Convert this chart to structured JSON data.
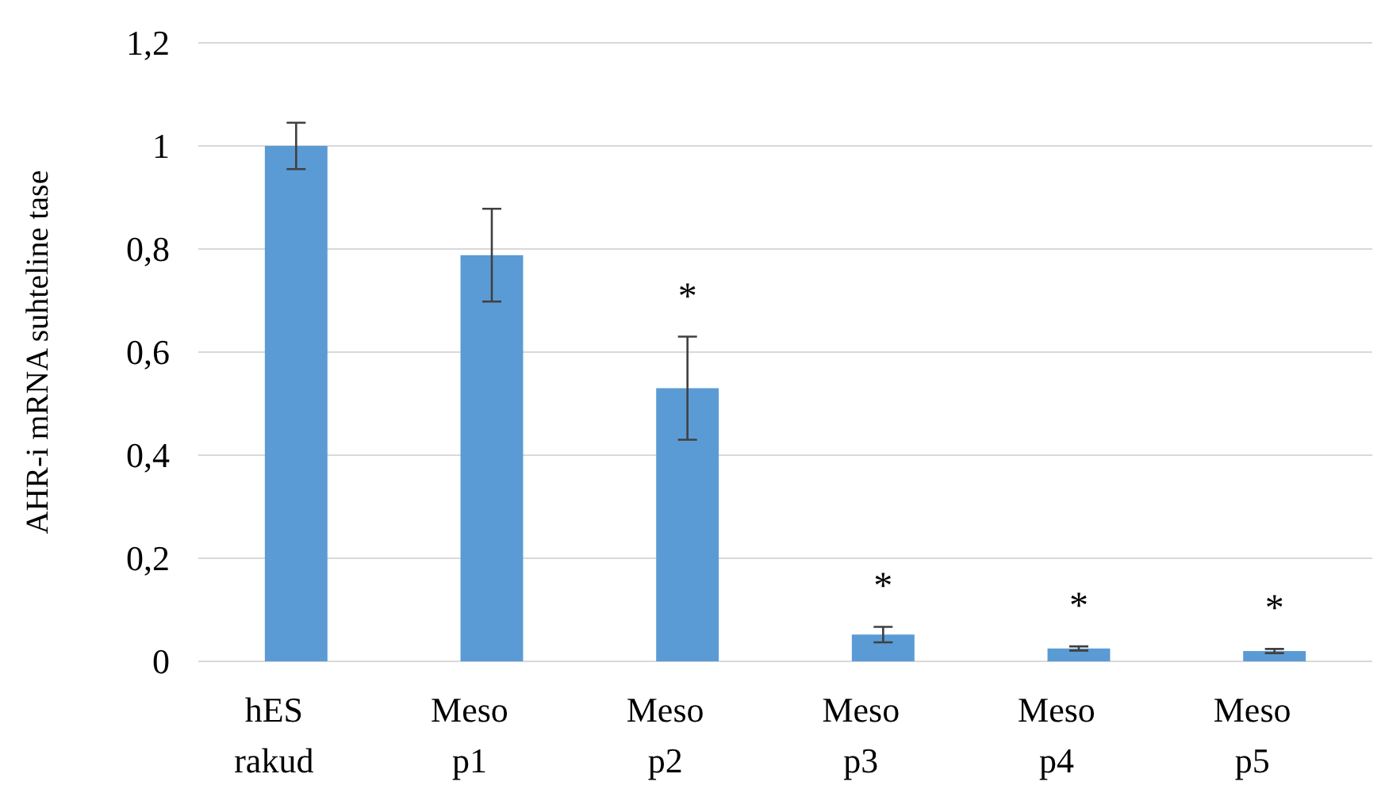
{
  "chart_data": {
    "type": "bar",
    "ylabel": "AHR-i mRNA suhteline tase",
    "categories": [
      "hES rakud",
      "Meso p1",
      "Meso p2",
      "Meso p3",
      "Meso p4",
      "Meso p5"
    ],
    "values": [
      1.0,
      0.788,
      0.53,
      0.052,
      0.025,
      0.02
    ],
    "errors": [
      0.045,
      0.09,
      0.1,
      0.015,
      0.004,
      0.004
    ],
    "color": "#5b9bd5",
    "ylim": [
      0,
      1.2
    ],
    "yticks": [
      0,
      {
        "value": 0.2,
        "label": "0,2"
      },
      {
        "value": 0.4,
        "label": "0,4"
      },
      {
        "value": 0.6,
        "label": "0,6"
      },
      {
        "value": 0.8,
        "label": "0,8"
      },
      1,
      {
        "value": 1.2,
        "label": "1,2"
      }
    ],
    "grid": "y",
    "annotations": [
      "*",
      "*",
      "*",
      "*"
    ]
  }
}
